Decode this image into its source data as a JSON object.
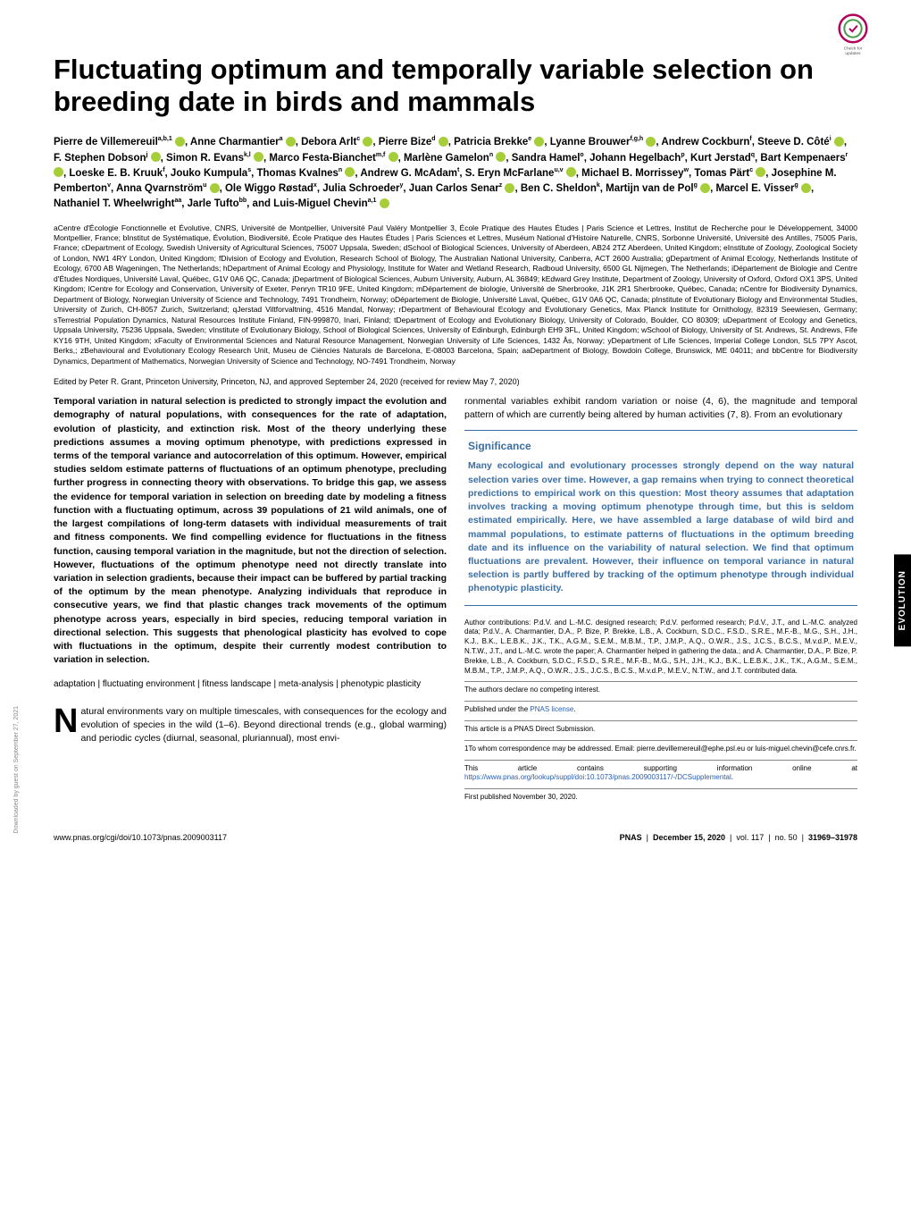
{
  "badge": {
    "label": "Check for updates"
  },
  "title": "Fluctuating optimum and temporally variable selection on breeding date in birds and mammals",
  "authors_html": "Pierre de Villemereuil<sup>a,b,1</sup> <span class='orcid'></span>, Anne Charmantier<sup>a</sup> <span class='orcid'></span>, Debora Arlt<sup>c</sup> <span class='orcid'></span>, Pierre Bize<sup>d</sup> <span class='orcid'></span>, Patricia Brekke<sup>e</sup> <span class='orcid'></span>, Lyanne Brouwer<sup>f,g,h</sup> <span class='orcid'></span>, Andrew Cockburn<sup>f</sup>, Steeve D. Côté<sup>i</sup> <span class='orcid'></span>, F. Stephen Dobson<sup>j</sup> <span class='orcid'></span>, Simon R. Evans<sup>k,l</sup> <span class='orcid'></span>, Marco Festa-Bianchet<sup>m,f</sup> <span class='orcid'></span>, Marlène Gamelon<sup>n</sup> <span class='orcid'></span>, Sandra Hamel<sup>o</sup>, Johann Hegelbach<sup>p</sup>, Kurt Jerstad<sup>q</sup>, Bart Kempenaers<sup>r</sup> <span class='orcid'></span>, Loeske E. B. Kruuk<sup>f</sup>, Jouko Kumpula<sup>s</sup>, Thomas Kvalnes<sup>n</sup> <span class='orcid'></span>, Andrew G. McAdam<sup>t</sup>, S. Eryn McFarlane<sup>u,v</sup> <span class='orcid'></span>, Michael B. Morrissey<sup>w</sup>, Tomas Pärt<sup>c</sup> <span class='orcid'></span>, Josephine M. Pemberton<sup>v</sup>, Anna Qvarnström<sup>u</sup> <span class='orcid'></span>, Ole Wiggo Røstad<sup>x</sup>, Julia Schroeder<sup>y</sup>, Juan Carlos Senar<sup>z</sup> <span class='orcid'></span>, Ben C. Sheldon<sup>k</sup>, Martijn van de Pol<sup>g</sup> <span class='orcid'></span>, Marcel E. Visser<sup>g</sup> <span class='orcid'></span>, Nathaniel T. Wheelwright<sup>aa</sup>, Jarle Tufto<sup>bb</sup>, and Luis-Miguel Chevin<sup>a,1</sup> <span class='orcid'></span>",
  "affiliations": "aCentre d'Écologie Fonctionnelle et Évolutive, CNRS, Université de Montpellier, Université Paul Valéry Montpellier 3, École Pratique des Hautes Études | Paris Science et Lettres, Institut de Recherche pour le Développement, 34000 Montpellier, France; bInstitut de Systématique, Évolution, Biodiversité, École Pratique des Hautes Études | Paris Sciences et Lettres, Muséum National d'Histoire Naturelle, CNRS, Sorbonne Université, Université des Antilles, 75005 Paris, France; cDepartment of Ecology, Swedish University of Agricultural Sciences, 75007 Uppsala, Sweden; dSchool of Biological Sciences, University of Aberdeen, AB24 2TZ Aberdeen, United Kingdom; eInstitute of Zoology, Zoological Society of London, NW1 4RY London, United Kingdom; fDivision of Ecology and Evolution, Research School of Biology, The Australian National University, Canberra, ACT 2600 Australia; gDepartment of Animal Ecology, Netherlands Institute of Ecology, 6700 AB Wageningen, The Netherlands; hDepartment of Animal Ecology and Physiology, Institute for Water and Wetland Research, Radboud University, 6500 GL Nijmegen, The Netherlands; iDépartement de Biologie and Centre d'Études Nordiques, Université Laval, Québec, G1V 0A6 QC, Canada; jDepartment of Biological Sciences, Auburn University, Auburn, AL 36849; kEdward Grey Institute, Department of Zoology, University of Oxford, Oxford OX1 3PS, United Kingdom; lCentre for Ecology and Conservation, University of Exeter, Penryn TR10 9FE, United Kingdom; mDépartement de biologie, Université de Sherbrooke, J1K 2R1 Sherbrooke, Québec, Canada; nCentre for Biodiversity Dynamics, Department of Biology, Norwegian University of Science and Technology, 7491 Trondheim, Norway; oDépartement de Biologie, Université Laval, Québec, G1V 0A6 QC, Canada; pInstitute of Evolutionary Biology and Environmental Studies, University of Zurich, CH-8057 Zurich, Switzerland; qJerstad Viltforvaltning, 4516 Mandal, Norway; rDepartment of Behavioural Ecology and Evolutionary Genetics, Max Planck Institute for Ornithology, 82319 Seewiesen, Germany; sTerrestrial Population Dynamics, Natural Resources Institute Finland, FIN-999870, Inari, Finland; tDepartment of Ecology and Evolutionary Biology, University of Colorado, Boulder, CO 80309; uDepartment of Ecology and Genetics, Uppsala University, 75236 Uppsala, Sweden; vInstitute of Evolutionary Biology, School of Biological Sciences, University of Edinburgh, Edinburgh EH9 3FL, United Kingdom; wSchool of Biology, University of St. Andrews, St. Andrews, Fife KY16 9TH, United Kingdom; xFaculty of Environmental Sciences and Natural Resource Management, Norwegian University of Life Sciences, 1432 Ås, Norway; yDepartment of Life Sciences, Imperial College London, SL5 7PY Ascot, Berks,; zBehavioural and Evolutionary Ecology Research Unit, Museu de Ciències Naturals de Barcelona, E-08003 Barcelona, Spain; aaDepartment of Biology, Bowdoin College, Brunswick, ME 04011; and bbCentre for Biodiversity Dynamics, Department of Mathematics, Norwegian University of Science and Technology, NO-7491 Trondheim, Norway",
  "edited": "Edited by Peter R. Grant, Princeton University, Princeton, NJ, and approved September 24, 2020 (received for review May 7, 2020)",
  "abstract": "Temporal variation in natural selection is predicted to strongly impact the evolution and demography of natural populations, with consequences for the rate of adaptation, evolution of plasticity, and extinction risk. Most of the theory underlying these predictions assumes a moving optimum phenotype, with predictions expressed in terms of the temporal variance and autocorrelation of this optimum. However, empirical studies seldom estimate patterns of fluctuations of an optimum phenotype, precluding further progress in connecting theory with observations. To bridge this gap, we assess the evidence for temporal variation in selection on breeding date by modeling a fitness function with a fluctuating optimum, across 39 populations of 21 wild animals, one of the largest compilations of long-term datasets with individual measurements of trait and fitness components. We find compelling evidence for fluctuations in the fitness function, causing temporal variation in the magnitude, but not the direction of selection. However, fluctuations of the optimum phenotype need not directly translate into variation in selection gradients, because their impact can be buffered by partial tracking of the optimum by the mean phenotype. Analyzing individuals that reproduce in consecutive years, we find that plastic changes track movements of the optimum phenotype across years, especially in bird species, reducing temporal variation in directional selection. This suggests that phenological plasticity has evolved to cope with fluctuations in the optimum, despite their currently modest contribution to variation in selection.",
  "keywords": "adaptation | fluctuating environment | fitness landscape | meta-analysis | phenotypic plasticity",
  "body_intro": "atural environments vary on multiple timescales, with consequences for the ecology and evolution of species in the wild (1–6). Beyond directional trends (e.g., global warming) and periodic cycles (diurnal, seasonal, pluriannual), most envi-",
  "body_right": "ronmental variables exhibit random variation or noise (4, 6), the magnitude and temporal pattern of which are currently being altered by human activities (7, 8). From an evolutionary",
  "significance": {
    "title": "Significance",
    "text": "Many ecological and evolutionary processes strongly depend on the way natural selection varies over time. However, a gap remains when trying to connect theoretical predictions to empirical work on this question: Most theory assumes that adaptation involves tracking a moving optimum phenotype through time, but this is seldom estimated empirically. Here, we have assembled a large database of wild bird and mammal populations, to estimate patterns of fluctuations in the optimum breeding date and its influence on the variability of natural selection. We find that optimum fluctuations are prevalent. However, their influence on temporal variance in natural selection is partly buffered by tracking of the optimum phenotype through individual phenotypic plasticity."
  },
  "contributions": "Author contributions: P.d.V. and L.-M.C. designed research; P.d.V. performed research; P.d.V., J.T., and L.-M.C. analyzed data; P.d.V., A. Charmantier, D.A., P. Bize, P. Brekke, L.B., A. Cockburn, S.D.C., F.S.D., S.R.E., M.F.-B., M.G., S.H., J.H., K.J., B.K., L.E.B.K., J.K., T.K., A.G.M., S.E.M., M.B.M., T.P., J.M.P., A.Q., O.W.R., J.S., J.C.S., B.C.S., M.v.d.P., M.E.V., N.T.W., J.T., and L.-M.C. wrote the paper; A. Charmantier helped in gathering the data.; and A. Charmantier, D.A., P. Bize, P. Brekke, L.B., A. Cockburn, S.D.C., F.S.D., S.R.E., M.F.-B., M.G., S.H., J.H., K.J., B.K., L.E.B.K., J.K., T.K., A.G.M., S.E.M., M.B.M., T.P., J.M.P., A.Q., O.W.R., J.S., J.C.S., B.C.S., M.v.d.P., M.E.V., N.T.W., and J.T. contributed data.",
  "competing": "The authors declare no competing interest.",
  "license_prefix": "Published under the ",
  "license_link": "PNAS license",
  "license_suffix": ".",
  "direct_sub": "This article is a PNAS Direct Submission.",
  "corr": "1To whom correspondence may be addressed. Email: pierre.devillemereuil@ephe.psl.eu or luis-miguel.chevin@cefe.cnrs.fr.",
  "suppl_prefix": "This article contains supporting information online at ",
  "suppl_link": "https://www.pnas.org/lookup/suppl/doi:10.1073/pnas.2009003117/-/DCSupplemental",
  "suppl_suffix": ".",
  "first_pub": "First published November 30, 2020.",
  "side_tab": "EVOLUTION",
  "vertical_credit": "Downloaded by guest on September 27, 2021",
  "footer": {
    "doi": "www.pnas.org/cgi/doi/10.1073/pnas.2009003117",
    "journal": "PNAS",
    "date": "December 15, 2020",
    "vol": "vol. 117",
    "no": "no. 50",
    "pages": "31969–31978"
  }
}
